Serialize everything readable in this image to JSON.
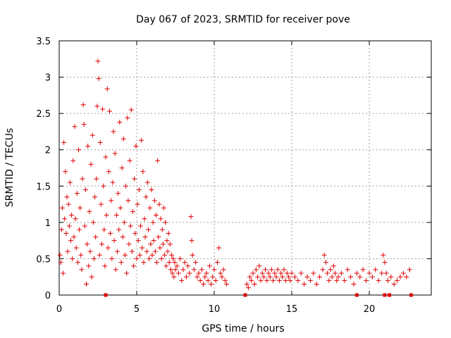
{
  "chart_data": {
    "type": "scatter",
    "title": "Day 067 of 2023, SRMTID for receiver pove",
    "xlabel": "GPS time / hours",
    "ylabel": "SRMTID / TECUs",
    "xlim": [
      0,
      24
    ],
    "ylim": [
      0,
      3.5
    ],
    "xticks": [
      0,
      5,
      10,
      15,
      20
    ],
    "yticks": [
      0,
      0.5,
      1,
      1.5,
      2,
      2.5,
      3,
      3.5
    ],
    "xtick_labels": [
      "0",
      "5",
      "10",
      "15",
      "20"
    ],
    "ytick_labels": [
      "0",
      "0.5",
      "1",
      "1.5",
      "2",
      "2.5",
      "3",
      "3.5"
    ],
    "grid": true,
    "marker": "plus",
    "color": "#e00000",
    "series": [
      {
        "name": "SRMTID",
        "points": [
          [
            0.05,
            0.55
          ],
          [
            0.1,
            0.45
          ],
          [
            0.15,
            0.9
          ],
          [
            0.2,
            1.2
          ],
          [
            0.25,
            0.3
          ],
          [
            0.3,
            2.1
          ],
          [
            0.35,
            1.05
          ],
          [
            0.4,
            1.7
          ],
          [
            0.45,
            0.85
          ],
          [
            0.5,
            1.35
          ],
          [
            0.55,
            0.6
          ],
          [
            0.6,
            1.25
          ],
          [
            0.65,
            0.95
          ],
          [
            0.7,
            1.55
          ],
          [
            0.75,
            0.75
          ],
          [
            0.8,
            1.1
          ],
          [
            0.85,
            0.5
          ],
          [
            0.9,
            1.85
          ],
          [
            0.95,
            0.8
          ],
          [
            1.0,
            2.32
          ],
          [
            1.05,
            1.05
          ],
          [
            1.1,
            0.65
          ],
          [
            1.15,
            1.4
          ],
          [
            1.2,
            0.45
          ],
          [
            1.25,
            2.0
          ],
          [
            1.3,
            0.9
          ],
          [
            1.35,
            1.2
          ],
          [
            1.4,
            0.55
          ],
          [
            1.45,
            0.35
          ],
          [
            1.5,
            1.6
          ],
          [
            1.55,
            2.62
          ],
          [
            1.6,
            2.35
          ],
          [
            1.65,
            0.95
          ],
          [
            1.7,
            1.45
          ],
          [
            1.75,
            0.15
          ],
          [
            1.8,
            0.7
          ],
          [
            1.85,
            2.05
          ],
          [
            1.9,
            0.4
          ],
          [
            1.95,
            1.15
          ],
          [
            2.0,
            0.6
          ],
          [
            2.05,
            1.8
          ],
          [
            2.1,
            0.25
          ],
          [
            2.15,
            2.2
          ],
          [
            2.2,
            1.0
          ],
          [
            2.25,
            0.5
          ],
          [
            2.3,
            1.35
          ],
          [
            2.35,
            0.8
          ],
          [
            2.4,
            1.6
          ],
          [
            2.45,
            2.6
          ],
          [
            2.5,
            3.22
          ],
          [
            2.55,
            2.98
          ],
          [
            2.6,
            0.55
          ],
          [
            2.65,
            2.1
          ],
          [
            2.7,
            1.25
          ],
          [
            2.75,
            0.7
          ],
          [
            2.8,
            2.56
          ],
          [
            2.85,
            1.5
          ],
          [
            2.9,
            0.9
          ],
          [
            2.95,
            0.4
          ],
          [
            3.0,
            1.9
          ],
          [
            3.05,
            1.1
          ],
          [
            3.1,
            2.84
          ],
          [
            3.15,
            0.65
          ],
          [
            3.2,
            1.7
          ],
          [
            3.25,
            2.53
          ],
          [
            3.3,
            0.85
          ],
          [
            3.35,
            1.3
          ],
          [
            3.4,
            0.5
          ],
          [
            3.45,
            1.55
          ],
          [
            3.5,
            2.25
          ],
          [
            3.55,
            0.75
          ],
          [
            3.6,
            1.95
          ],
          [
            3.65,
            0.35
          ],
          [
            3.7,
            1.1
          ],
          [
            3.75,
            0.6
          ],
          [
            3.8,
            1.4
          ],
          [
            3.85,
            0.9
          ],
          [
            3.9,
            2.38
          ],
          [
            3.95,
            1.2
          ],
          [
            4.0,
            0.45
          ],
          [
            4.05,
            1.75
          ],
          [
            4.1,
            0.8
          ],
          [
            4.15,
            2.15
          ],
          [
            4.2,
            1.0
          ],
          [
            4.25,
            0.55
          ],
          [
            4.3,
            1.5
          ],
          [
            4.35,
            0.3
          ],
          [
            4.4,
            2.44
          ],
          [
            4.45,
            1.3
          ],
          [
            4.5,
            0.7
          ],
          [
            4.55,
            1.85
          ],
          [
            4.6,
            0.95
          ],
          [
            4.65,
            2.55
          ],
          [
            4.7,
            0.6
          ],
          [
            4.75,
            1.15
          ],
          [
            4.8,
            0.4
          ],
          [
            4.85,
            1.6
          ],
          [
            4.9,
            0.85
          ],
          [
            4.95,
            2.05
          ],
          [
            5.0,
            0.5
          ],
          [
            5.05,
            1.25
          ],
          [
            5.1,
            0.75
          ],
          [
            5.15,
            1.45
          ],
          [
            5.2,
            0.55
          ],
          [
            5.25,
            0.95
          ],
          [
            5.3,
            2.13
          ],
          [
            5.35,
            0.65
          ],
          [
            5.4,
            1.7
          ],
          [
            5.45,
            0.45
          ],
          [
            5.5,
            1.05
          ],
          [
            5.55,
            0.8
          ],
          [
            5.6,
            1.35
          ],
          [
            5.65,
            0.6
          ],
          [
            5.7,
            1.55
          ],
          [
            5.75,
            0.9
          ],
          [
            5.8,
            0.5
          ],
          [
            5.85,
            1.2
          ],
          [
            5.9,
            0.7
          ],
          [
            5.95,
            1.45
          ],
          [
            6.0,
            0.55
          ],
          [
            6.05,
            1.0
          ],
          [
            6.1,
            0.75
          ],
          [
            6.15,
            1.3
          ],
          [
            6.2,
            0.6
          ],
          [
            6.25,
            1.1
          ],
          [
            6.3,
            0.45
          ],
          [
            6.35,
            1.85
          ],
          [
            6.4,
            0.8
          ],
          [
            6.45,
            1.25
          ],
          [
            6.5,
            0.65
          ],
          [
            6.55,
            1.05
          ],
          [
            6.6,
            0.5
          ],
          [
            6.65,
            0.9
          ],
          [
            6.7,
            0.7
          ],
          [
            6.75,
            1.2
          ],
          [
            6.8,
            0.55
          ],
          [
            6.85,
            1.0
          ],
          [
            6.9,
            0.4
          ],
          [
            6.95,
            0.75
          ],
          [
            7.0,
            0.6
          ],
          [
            7.05,
            0.85
          ],
          [
            7.1,
            0.45
          ],
          [
            7.15,
            0.7
          ],
          [
            7.2,
            0.35
          ],
          [
            7.25,
            0.55
          ],
          [
            7.3,
            0.3
          ],
          [
            7.35,
            0.5
          ],
          [
            7.4,
            0.25
          ],
          [
            7.45,
            0.45
          ],
          [
            7.5,
            0.35
          ],
          [
            7.6,
            0.4
          ],
          [
            7.7,
            0.3
          ],
          [
            7.8,
            0.5
          ],
          [
            7.9,
            0.2
          ],
          [
            8.0,
            0.35
          ],
          [
            8.1,
            0.45
          ],
          [
            8.2,
            0.25
          ],
          [
            8.3,
            0.4
          ],
          [
            8.4,
            0.3
          ],
          [
            8.5,
            1.08
          ],
          [
            8.55,
            0.75
          ],
          [
            8.6,
            0.55
          ],
          [
            8.7,
            0.35
          ],
          [
            8.8,
            0.45
          ],
          [
            8.9,
            0.25
          ],
          [
            9.0,
            0.3
          ],
          [
            9.1,
            0.2
          ],
          [
            9.2,
            0.35
          ],
          [
            9.3,
            0.15
          ],
          [
            9.4,
            0.25
          ],
          [
            9.5,
            0.3
          ],
          [
            9.6,
            0.2
          ],
          [
            9.7,
            0.4
          ],
          [
            9.8,
            0.15
          ],
          [
            9.9,
            0.25
          ],
          [
            10.0,
            0.35
          ],
          [
            10.1,
            0.2
          ],
          [
            10.2,
            0.45
          ],
          [
            10.3,
            0.65
          ],
          [
            10.4,
            0.3
          ],
          [
            10.5,
            0.25
          ],
          [
            10.6,
            0.35
          ],
          [
            10.7,
            0.2
          ],
          [
            10.8,
            0.15
          ],
          [
            12.1,
            0.15
          ],
          [
            12.2,
            0.1
          ],
          [
            12.3,
            0.25
          ],
          [
            12.4,
            0.2
          ],
          [
            12.5,
            0.3
          ],
          [
            12.6,
            0.15
          ],
          [
            12.7,
            0.35
          ],
          [
            12.8,
            0.25
          ],
          [
            12.9,
            0.4
          ],
          [
            13.0,
            0.2
          ],
          [
            13.1,
            0.3
          ],
          [
            13.2,
            0.25
          ],
          [
            13.3,
            0.35
          ],
          [
            13.4,
            0.2
          ],
          [
            13.5,
            0.3
          ],
          [
            13.6,
            0.25
          ],
          [
            13.7,
            0.35
          ],
          [
            13.8,
            0.2
          ],
          [
            13.9,
            0.3
          ],
          [
            14.0,
            0.25
          ],
          [
            14.1,
            0.35
          ],
          [
            14.2,
            0.2
          ],
          [
            14.3,
            0.3
          ],
          [
            14.4,
            0.25
          ],
          [
            14.5,
            0.35
          ],
          [
            14.6,
            0.2
          ],
          [
            14.7,
            0.3
          ],
          [
            14.8,
            0.25
          ],
          [
            14.9,
            0.2
          ],
          [
            15.0,
            0.3
          ],
          [
            15.2,
            0.25
          ],
          [
            15.4,
            0.2
          ],
          [
            15.6,
            0.3
          ],
          [
            15.8,
            0.15
          ],
          [
            16.0,
            0.25
          ],
          [
            16.2,
            0.2
          ],
          [
            16.4,
            0.3
          ],
          [
            16.6,
            0.15
          ],
          [
            16.8,
            0.25
          ],
          [
            17.0,
            0.35
          ],
          [
            17.1,
            0.55
          ],
          [
            17.2,
            0.45
          ],
          [
            17.3,
            0.3
          ],
          [
            17.4,
            0.2
          ],
          [
            17.5,
            0.35
          ],
          [
            17.6,
            0.25
          ],
          [
            17.7,
            0.4
          ],
          [
            17.8,
            0.3
          ],
          [
            17.9,
            0.2
          ],
          [
            18.0,
            0.25
          ],
          [
            18.2,
            0.3
          ],
          [
            18.4,
            0.2
          ],
          [
            18.6,
            0.35
          ],
          [
            18.8,
            0.25
          ],
          [
            19.0,
            0.15
          ],
          [
            19.2,
            0.3
          ],
          [
            19.4,
            0.25
          ],
          [
            19.6,
            0.35
          ],
          [
            19.8,
            0.2
          ],
          [
            20.0,
            0.3
          ],
          [
            20.2,
            0.25
          ],
          [
            20.4,
            0.35
          ],
          [
            20.6,
            0.2
          ],
          [
            20.8,
            0.3
          ],
          [
            20.9,
            0.55
          ],
          [
            21.0,
            0.45
          ],
          [
            21.1,
            0.3
          ],
          [
            21.2,
            0.2
          ],
          [
            21.4,
            0.25
          ],
          [
            21.6,
            0.15
          ],
          [
            21.8,
            0.2
          ],
          [
            22.0,
            0.25
          ],
          [
            22.2,
            0.3
          ],
          [
            22.4,
            0.25
          ],
          [
            22.6,
            0.35
          ],
          [
            3.0,
            0.0
          ],
          [
            12.0,
            0.0
          ],
          [
            19.2,
            0.0
          ],
          [
            21.0,
            0.0
          ],
          [
            21.3,
            0.0
          ],
          [
            22.7,
            0.0
          ]
        ]
      }
    ]
  }
}
